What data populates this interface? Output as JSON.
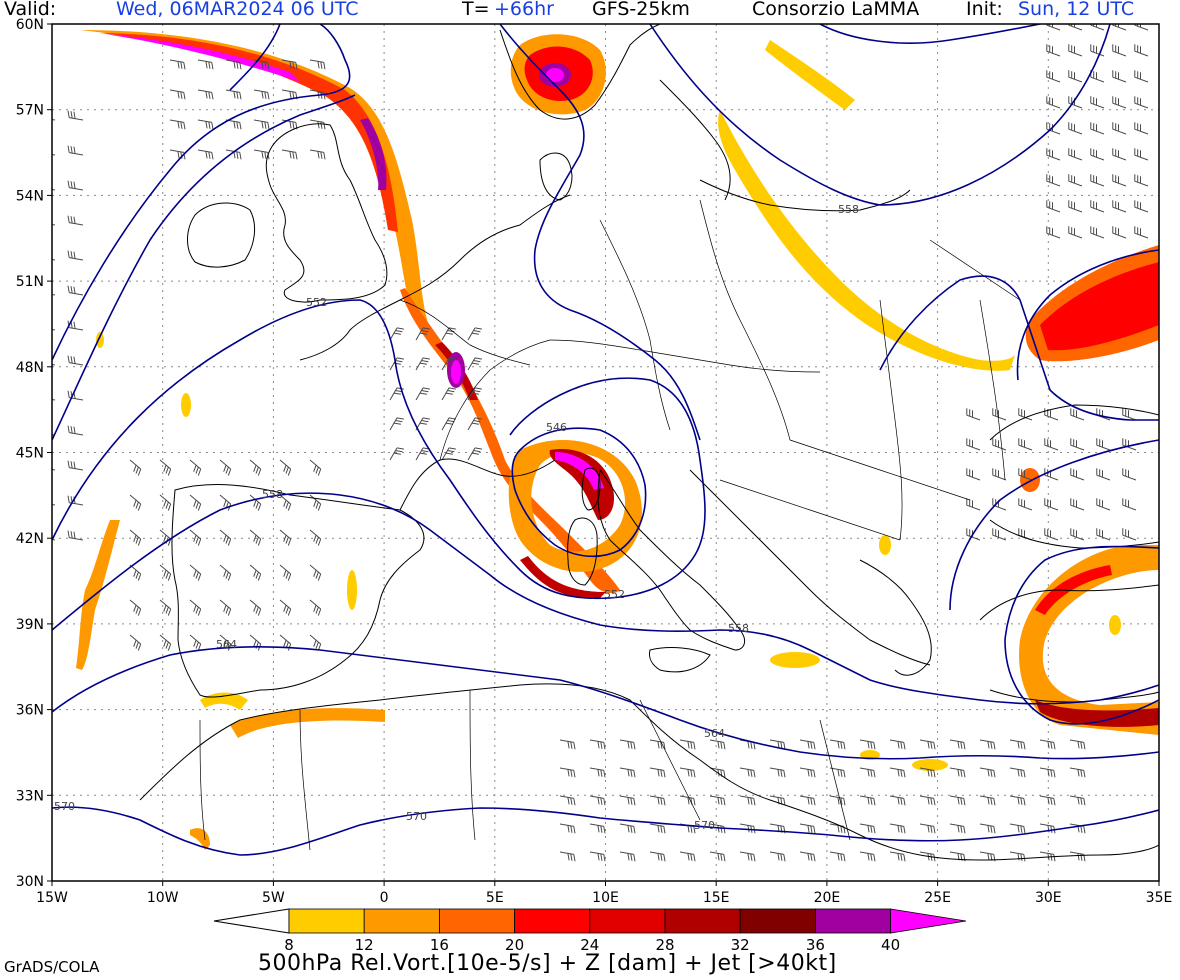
{
  "header": {
    "valid_label": "Valid:",
    "valid_value": "Wed, 06MAR2024 06 UTC",
    "lead_label": "T=",
    "lead_value": "+66hr",
    "model": "GFS-25km",
    "producer": "Consorzio LaMMA",
    "init_label": "Init:",
    "init_value": "Sun, 12 UTC"
  },
  "map": {
    "lat_labels": [
      "60N",
      "57N",
      "54N",
      "51N",
      "48N",
      "45N",
      "42N",
      "39N",
      "36N",
      "33N",
      "30N"
    ],
    "lon_labels": [
      "15W",
      "10W",
      "5W",
      "0",
      "5E",
      "10E",
      "15E",
      "20E",
      "25E",
      "30E",
      "35E"
    ],
    "contour_labels": [
      "552",
      "546",
      "558",
      "552",
      "558",
      "564",
      "558",
      "564",
      "570",
      "570",
      "570"
    ],
    "colors": {
      "contour": "#00008b",
      "border": "#000000",
      "grid": "#808080"
    }
  },
  "colorbar": {
    "ticks": [
      "8",
      "12",
      "16",
      "20",
      "24",
      "28",
      "32",
      "36",
      "40"
    ],
    "colors": [
      "#ffcc00",
      "#ff9900",
      "#ff6600",
      "#ff0000",
      "#e00000",
      "#b00000",
      "#800000",
      "#a000a0",
      "#ff00ff"
    ]
  },
  "footer": {
    "credit": "GrADS/COLA",
    "title": "500hPa Rel.Vort.[10e-5/s] + Z [dam] + Jet [>40kt]"
  }
}
